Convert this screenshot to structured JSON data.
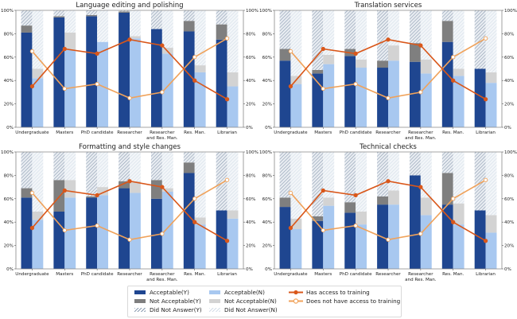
{
  "colors": {
    "acceptable_y": "#1f4690",
    "not_acceptable_y": "#7f7f7f",
    "did_not_answer_y": "#b8c4d2",
    "acceptable_n": "#a8c8f0",
    "not_acceptable_n": "#d3d3d3",
    "did_not_answer_n": "#e4ecf3",
    "has_access": "#d9571a",
    "no_access": "#f0a25a"
  },
  "legend": {
    "acceptable_y": "Acceptable(Y)",
    "not_acceptable_y": "Not Acceptable(Y)",
    "did_not_answer_y": "Did Not Answer(Y)",
    "acceptable_n": "Acceptable(N)",
    "not_acceptable_n": "Not Acceptable(N)",
    "did_not_answer_n": "Did Not Answer(N)",
    "has_access": "Has access to training",
    "no_access": "Does not have access to training"
  },
  "chart_data": [
    {
      "type": "bar",
      "title": "Language editing and polishing",
      "categories": [
        "Undergraduate",
        "Masters",
        "PhD candidate",
        "Researcher",
        "Researcher\nand Res. Man.",
        "Res. Man.",
        "Librarian"
      ],
      "ylim": [
        0,
        100
      ],
      "yticks": [
        "0%",
        "20%",
        "40%",
        "60%",
        "80%",
        "100%"
      ],
      "y2ticks": [
        "0%",
        "20%",
        "40%",
        "60%",
        "80%",
        "100%"
      ],
      "series": [
        {
          "name": "Acceptable(Y)",
          "values": [
            81,
            94,
            95,
            98,
            84,
            82,
            75
          ]
        },
        {
          "name": "Not Acceptable(Y)",
          "values": [
            6,
            1,
            1,
            1,
            0,
            9,
            13
          ]
        },
        {
          "name": "Did Not Answer(Y)",
          "values": [
            13,
            5,
            4,
            1,
            16,
            9,
            12
          ]
        },
        {
          "name": "Acceptable(N)",
          "values": [
            42,
            66,
            73,
            76,
            63,
            47,
            35
          ]
        },
        {
          "name": "Not Acceptable(N)",
          "values": [
            8,
            15,
            0,
            2,
            5,
            6,
            12
          ]
        },
        {
          "name": "Did Not Answer(N)",
          "values": [
            50,
            19,
            27,
            22,
            32,
            47,
            53
          ]
        }
      ],
      "lines": [
        {
          "name": "Has access to training",
          "values": [
            35,
            67,
            63,
            75,
            70,
            40,
            24
          ]
        },
        {
          "name": "Does not have access to training",
          "values": [
            65,
            33,
            37,
            25,
            30,
            60,
            76
          ]
        }
      ]
    },
    {
      "type": "bar",
      "title": "Translation services",
      "categories": [
        "Undergraduate",
        "Masters",
        "PhD candidate",
        "Researcher",
        "Researcher\nand Res. Man.",
        "Res. Man.",
        "Librarian"
      ],
      "ylim": [
        0,
        100
      ],
      "yticks": [
        "0%",
        "20%",
        "40%",
        "60%",
        "80%",
        "100%"
      ],
      "y2ticks": [
        "0%",
        "20%",
        "40%",
        "60%",
        "80%",
        "100%"
      ],
      "series": [
        {
          "name": "Acceptable(Y)",
          "values": [
            57,
            46,
            61,
            51,
            56,
            73,
            50
          ]
        },
        {
          "name": "Not Acceptable(Y)",
          "values": [
            10,
            3,
            6,
            6,
            16,
            18,
            0
          ]
        },
        {
          "name": "Did Not Answer(Y)",
          "values": [
            33,
            51,
            33,
            43,
            28,
            9,
            50
          ]
        },
        {
          "name": "Acceptable(N)",
          "values": [
            37,
            54,
            51,
            57,
            46,
            44,
            38
          ]
        },
        {
          "name": "Not Acceptable(N)",
          "values": [
            7,
            8,
            7,
            13,
            12,
            6,
            9
          ]
        },
        {
          "name": "Did Not Answer(N)",
          "values": [
            56,
            38,
            42,
            30,
            42,
            50,
            53
          ]
        }
      ],
      "lines": [
        {
          "name": "Has access to training",
          "values": [
            35,
            67,
            63,
            75,
            70,
            40,
            24
          ]
        },
        {
          "name": "Does not have access to training",
          "values": [
            65,
            33,
            37,
            25,
            30,
            60,
            76
          ]
        }
      ]
    },
    {
      "type": "bar",
      "title": "Formatting and style changes",
      "categories": [
        "Undergraduate",
        "Masters",
        "PhD candidate",
        "Researcher",
        "Researcher\nand Res. Man.",
        "Res. Man.",
        "Librarian"
      ],
      "ylim": [
        0,
        100
      ],
      "yticks": [
        "0%",
        "20%",
        "40%",
        "60%",
        "80%",
        "100%"
      ],
      "y2ticks": [
        "0%",
        "20%",
        "40%",
        "60%",
        "80%",
        "100%"
      ],
      "series": [
        {
          "name": "Acceptable(Y)",
          "values": [
            61,
            49,
            61,
            69,
            60,
            82,
            50
          ]
        },
        {
          "name": "Not Acceptable(Y)",
          "values": [
            8,
            27,
            1,
            6,
            16,
            9,
            0
          ]
        },
        {
          "name": "Did Not Answer(Y)",
          "values": [
            31,
            24,
            38,
            25,
            24,
            9,
            50
          ]
        },
        {
          "name": "Acceptable(N)",
          "values": [
            42,
            61,
            63,
            65,
            66,
            38,
            43
          ]
        },
        {
          "name": "Not Acceptable(N)",
          "values": [
            7,
            15,
            7,
            10,
            3,
            6,
            7
          ]
        },
        {
          "name": "Did Not Answer(N)",
          "values": [
            51,
            24,
            30,
            25,
            31,
            56,
            50
          ]
        }
      ],
      "lines": [
        {
          "name": "Has access to training",
          "values": [
            35,
            67,
            63,
            75,
            70,
            40,
            24
          ]
        },
        {
          "name": "Does not have access to training",
          "values": [
            65,
            33,
            37,
            25,
            30,
            60,
            76
          ]
        }
      ]
    },
    {
      "type": "bar",
      "title": "Technical checks",
      "categories": [
        "Undergraduate",
        "Masters",
        "PhD candidate",
        "Researcher",
        "Researcher\nand Res. Man.",
        "Res. Man.",
        "Librarian"
      ],
      "ylim": [
        0,
        100
      ],
      "yticks": [
        "0%",
        "20%",
        "40%",
        "60%",
        "80%",
        "100%"
      ],
      "y2ticks": [
        "0%",
        "20%",
        "40%",
        "60%",
        "80%",
        "100%"
      ],
      "series": [
        {
          "name": "Acceptable(Y)",
          "values": [
            53,
            41,
            48,
            55,
            80,
            55,
            50
          ]
        },
        {
          "name": "Not Acceptable(Y)",
          "values": [
            8,
            4,
            9,
            7,
            0,
            27,
            0
          ]
        },
        {
          "name": "Did Not Answer(Y)",
          "values": [
            39,
            55,
            43,
            38,
            20,
            18,
            50
          ]
        },
        {
          "name": "Acceptable(N)",
          "values": [
            34,
            54,
            38,
            55,
            46,
            38,
            31
          ]
        },
        {
          "name": "Not Acceptable(N)",
          "values": [
            9,
            7,
            11,
            12,
            15,
            18,
            15
          ]
        },
        {
          "name": "Did Not Answer(N)",
          "values": [
            57,
            39,
            51,
            33,
            39,
            44,
            54
          ]
        }
      ],
      "lines": [
        {
          "name": "Has access to training",
          "values": [
            35,
            67,
            63,
            75,
            70,
            40,
            24
          ]
        },
        {
          "name": "Does not have access to training",
          "values": [
            65,
            33,
            37,
            25,
            30,
            60,
            76
          ]
        }
      ]
    }
  ]
}
